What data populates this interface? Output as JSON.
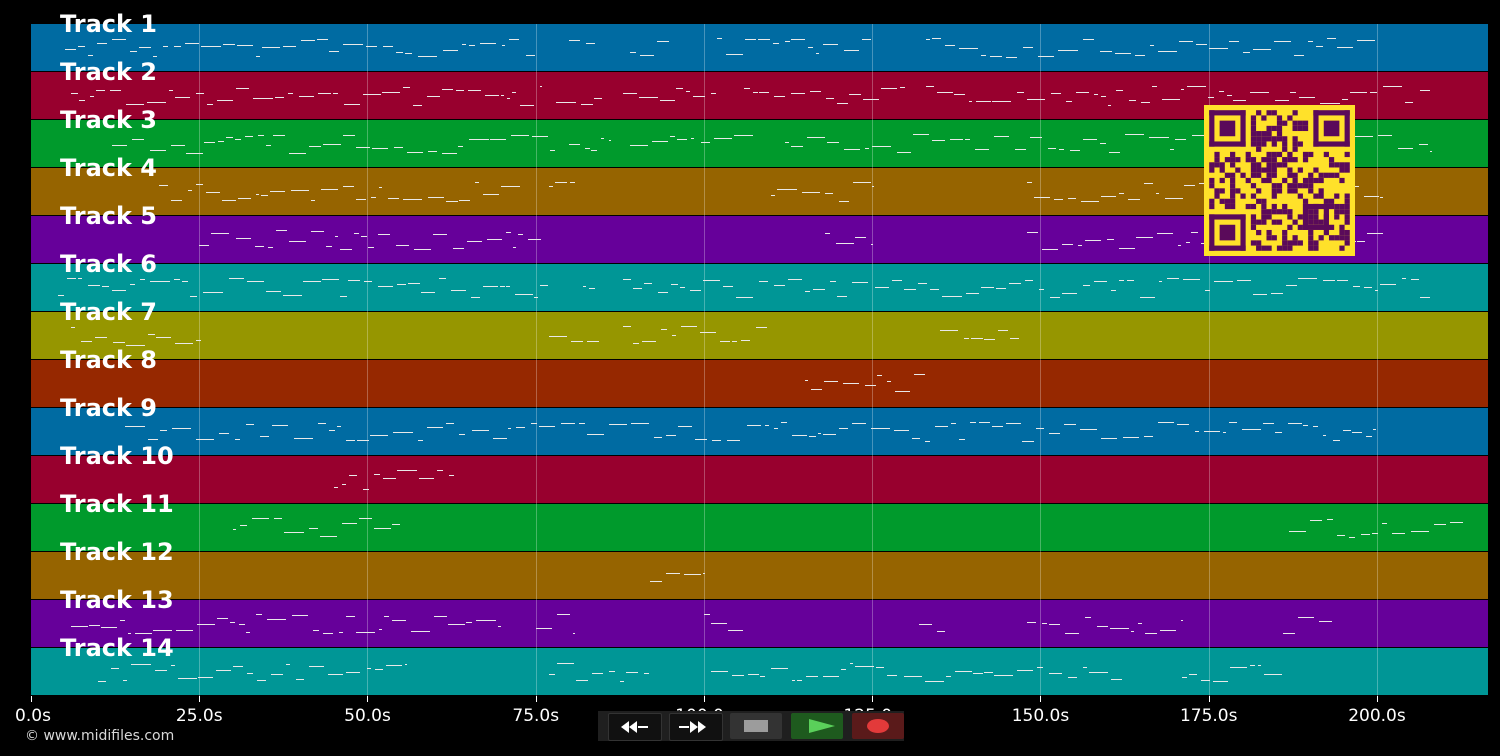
{
  "tracks": [
    {
      "label": "Track 1",
      "color": "#006ba2"
    },
    {
      "label": "Track 2",
      "color": "#98002e"
    },
    {
      "label": "Track 3",
      "color": "#009a2c"
    },
    {
      "label": "Track 4",
      "color": "#966400"
    },
    {
      "label": "Track 5",
      "color": "#66009a"
    },
    {
      "label": "Track 6",
      "color": "#009696"
    },
    {
      "label": "Track 7",
      "color": "#969600"
    },
    {
      "label": "Track 8",
      "color": "#962800"
    },
    {
      "label": "Track 9",
      "color": "#006ba2"
    },
    {
      "label": "Track 10",
      "color": "#98002e"
    },
    {
      "label": "Track 11",
      "color": "#009a2c"
    },
    {
      "label": "Track 12",
      "color": "#966400"
    },
    {
      "label": "Track 13",
      "color": "#66009a"
    },
    {
      "label": "Track 14",
      "color": "#009696"
    }
  ],
  "timeline": {
    "ticks": [
      "0.0s",
      "25.0s",
      "50.0s",
      "75.0s",
      "100.0s",
      "125.0s",
      "150.0s",
      "175.0s",
      "200.0s"
    ],
    "tick_values": [
      0,
      25,
      50,
      75,
      100,
      125,
      150,
      175,
      200
    ],
    "xmax": 216.5
  },
  "controls": {
    "rewind_icon": "rewind-icon",
    "forward_icon": "fast-forward-icon",
    "stop_icon": "stop-icon",
    "play_icon": "play-icon",
    "record_icon": "record-icon"
  },
  "footer": {
    "copyright": "© www.midifiles.com"
  },
  "accent": {
    "qr_bg": "#ffe12a",
    "qr_fg": "#5a0a5a"
  }
}
